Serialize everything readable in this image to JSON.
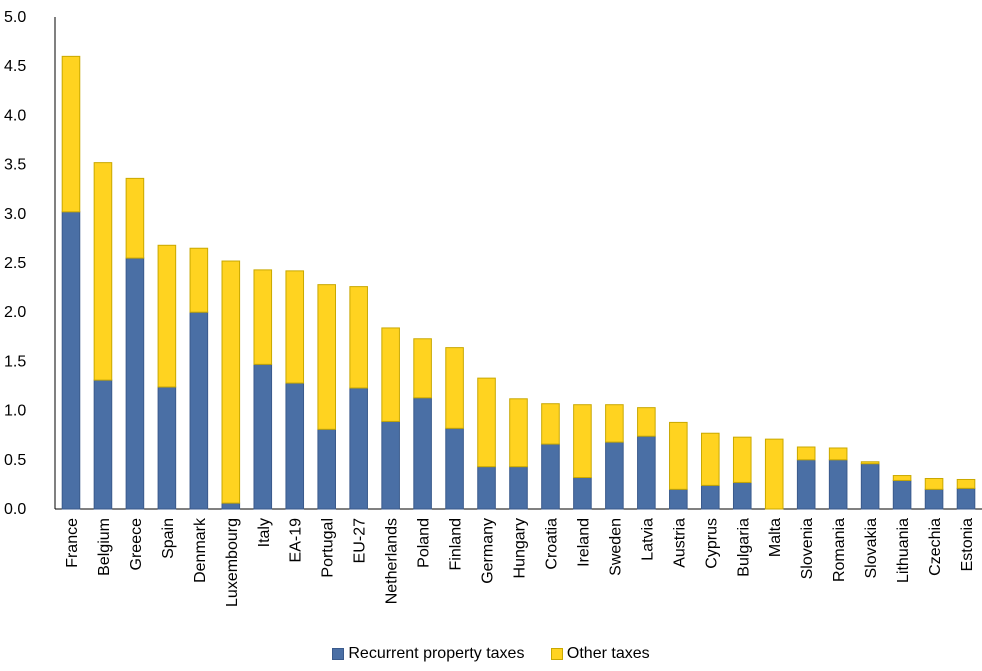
{
  "chart_data": {
    "type": "bar",
    "stacked": true,
    "title": "",
    "xlabel": "",
    "ylabel": "",
    "ylim": [
      0,
      5.0
    ],
    "yticks": [
      "0.0",
      "0.5",
      "1.0",
      "1.5",
      "2.0",
      "2.5",
      "3.0",
      "3.5",
      "4.0",
      "4.5",
      "5.0"
    ],
    "grid": false,
    "legend_position": "bottom",
    "categories": [
      "France",
      "Belgium",
      "Greece",
      "Spain",
      "Denmark",
      "Luxembourg",
      "Italy",
      "EA-19",
      "Portugal",
      "EU-27",
      "Netherlands",
      "Poland",
      "Finland",
      "Germany",
      "Hungary",
      "Croatia",
      "Ireland",
      "Sweden",
      "Latvia",
      "Austria",
      "Cyprus",
      "Bulgaria",
      "Malta",
      "Slovenia",
      "Romania",
      "Slovakia",
      "Lithuania",
      "Czechia",
      "Estonia"
    ],
    "series": [
      {
        "name": "Recurrent property taxes",
        "color": "#4a6fa5",
        "values": [
          3.02,
          1.31,
          2.55,
          1.24,
          2.0,
          0.06,
          1.47,
          1.28,
          0.81,
          1.23,
          0.89,
          1.13,
          0.82,
          0.43,
          0.43,
          0.66,
          0.32,
          0.68,
          0.74,
          0.2,
          0.24,
          0.27,
          0.0,
          0.5,
          0.5,
          0.46,
          0.29,
          0.2,
          0.21
        ]
      },
      {
        "name": "Other taxes",
        "color": "#ffd320",
        "values": [
          1.58,
          2.21,
          0.81,
          1.44,
          0.65,
          2.46,
          0.96,
          1.14,
          1.47,
          1.03,
          0.95,
          0.6,
          0.82,
          0.9,
          0.69,
          0.41,
          0.74,
          0.38,
          0.29,
          0.68,
          0.53,
          0.46,
          0.71,
          0.13,
          0.12,
          0.02,
          0.05,
          0.11,
          0.09
        ]
      }
    ]
  }
}
